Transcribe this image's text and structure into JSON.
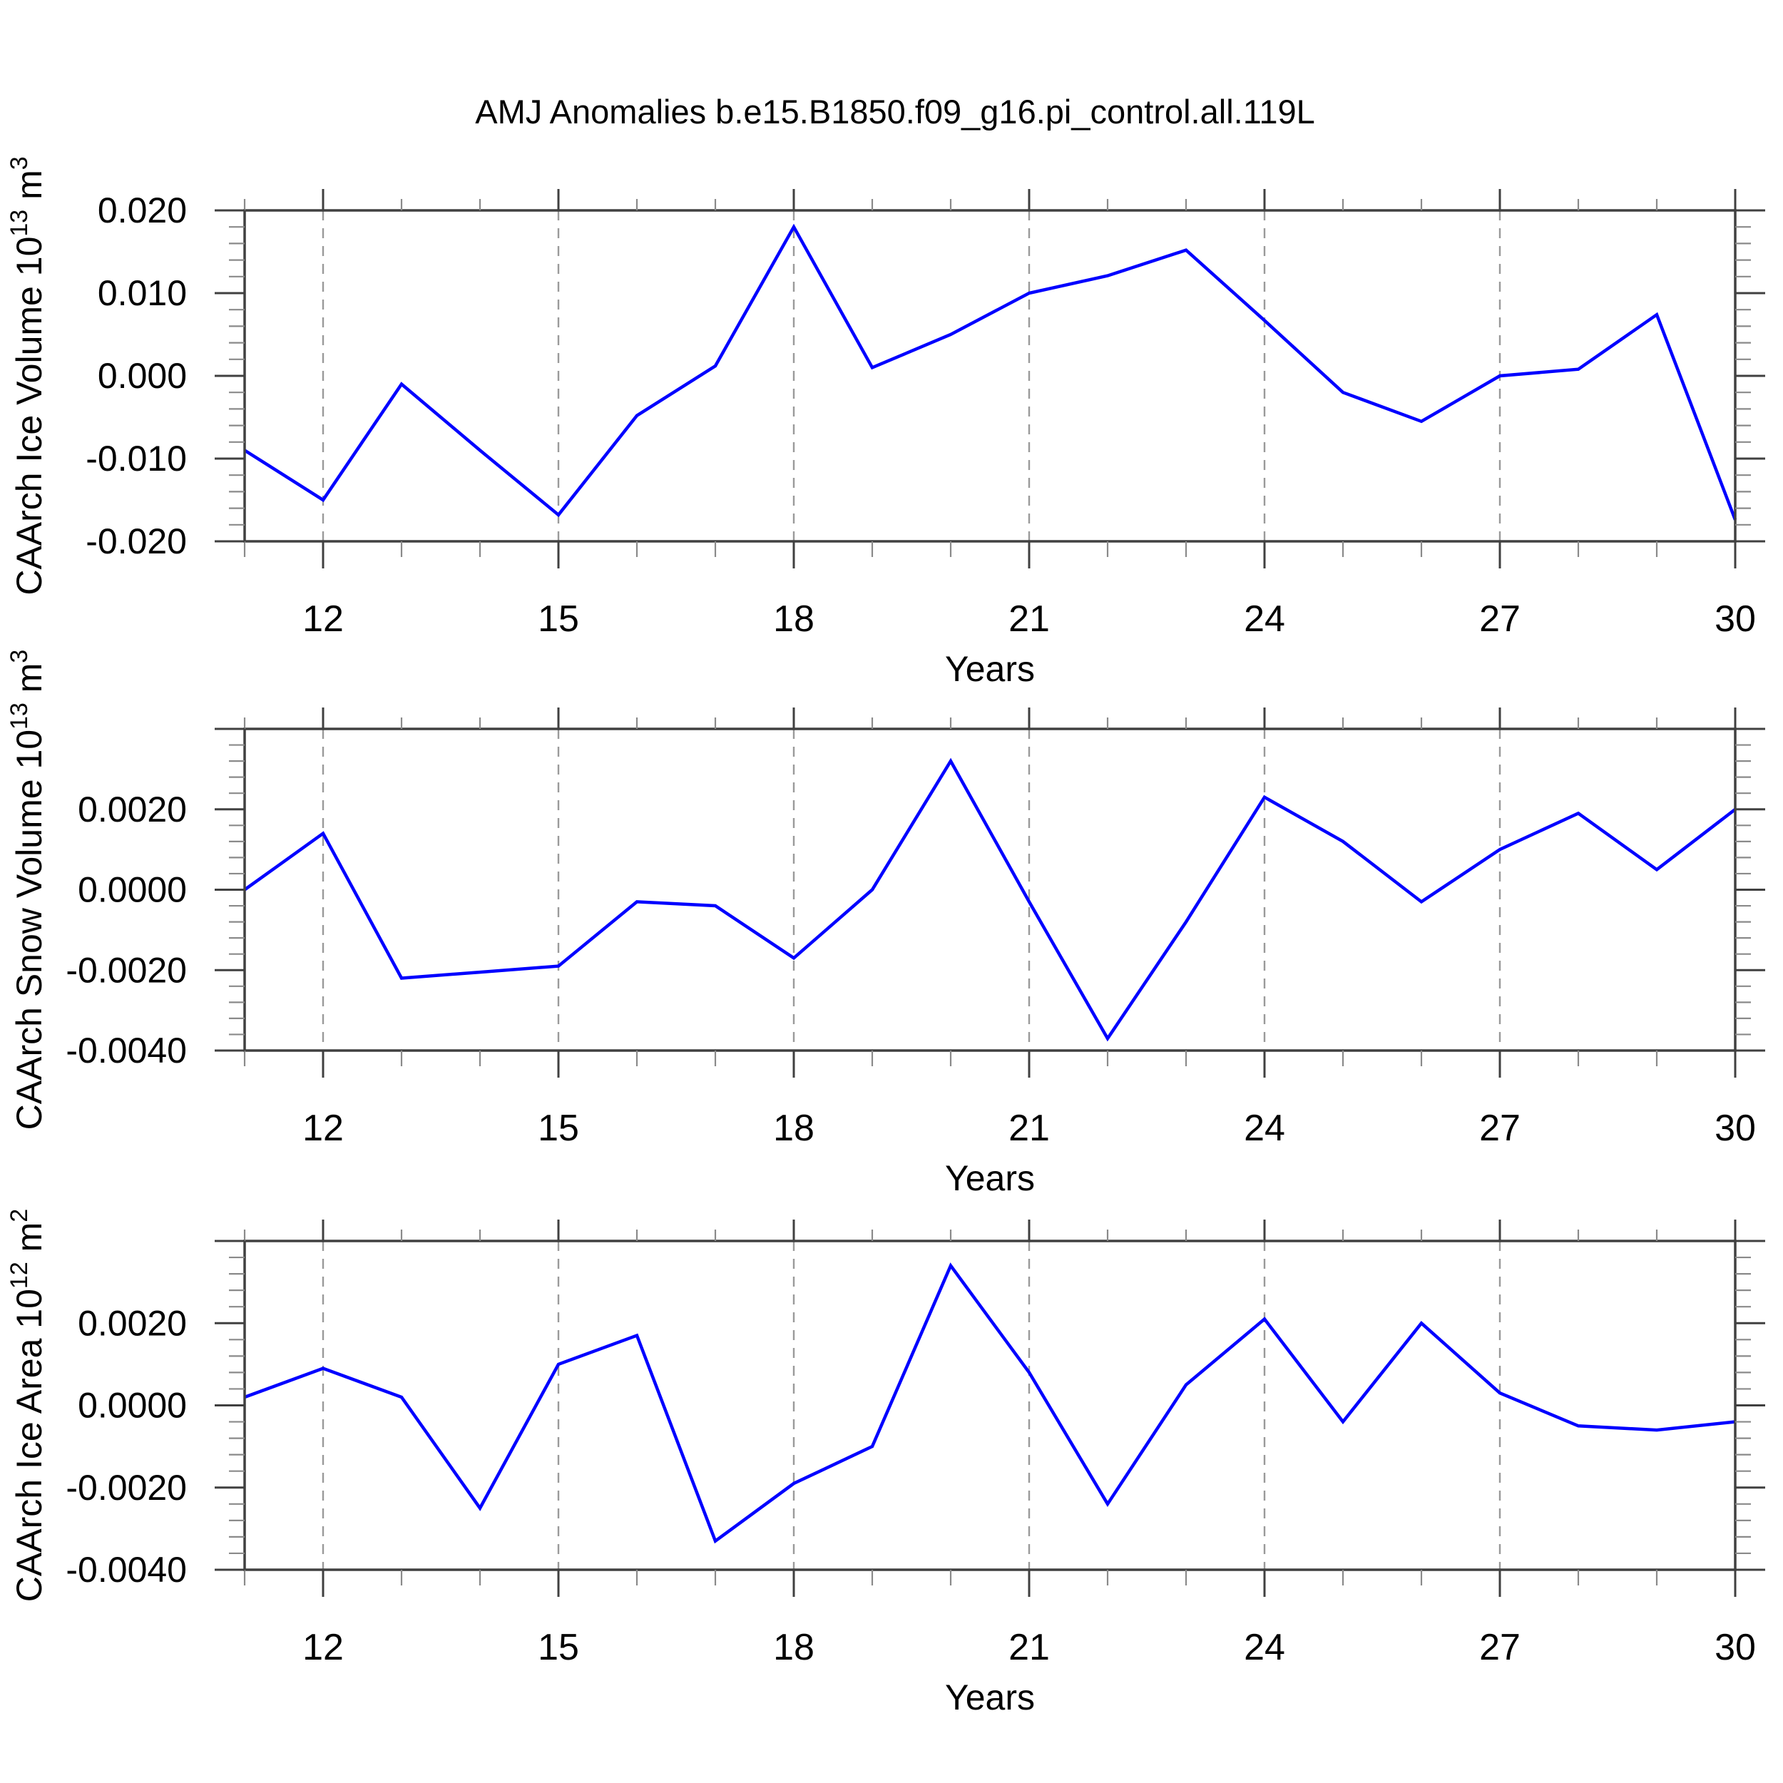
{
  "title": "AMJ Anomalies b.e15.B1850.f09_g16.pi_control.all.119L",
  "colors": {
    "line": "#0000ff",
    "axis": "#404040",
    "minor_tick": "#8a8a8a",
    "grid": "#9a9a9a",
    "text": "#000000"
  },
  "chart_data": [
    {
      "type": "line",
      "name": "ice-volume",
      "title": "",
      "ylabel": "CAArch Ice Volume 10^13 m^3",
      "ylabel_parts": [
        {
          "t": "CAArch Ice Volume 10"
        },
        {
          "t": "13",
          "sup": true
        },
        {
          "t": " m"
        },
        {
          "t": "3",
          "sup": true
        }
      ],
      "xlabel": "Years",
      "x": [
        11,
        12,
        13,
        14,
        15,
        16,
        17,
        18,
        19,
        20,
        21,
        22,
        23,
        24,
        25,
        26,
        27,
        28,
        29,
        30
      ],
      "values": [
        -0.009,
        -0.015,
        -0.001,
        -0.009,
        -0.0168,
        -0.0048,
        0.0012,
        0.018,
        0.001,
        0.005,
        0.01,
        0.0121,
        0.0152,
        0.0067,
        -0.002,
        -0.0055,
        0.0,
        0.0008,
        0.0074,
        -0.0174
      ],
      "xlim": [
        11,
        30
      ],
      "ylim": [
        -0.02,
        0.02
      ],
      "xticks_major": [
        12,
        15,
        18,
        21,
        24,
        27,
        30
      ],
      "xtick_labels": [
        "12",
        "15",
        "18",
        "21",
        "24",
        "27",
        "30"
      ],
      "grid_x": [
        12,
        15,
        18,
        21,
        24,
        27
      ],
      "yticks": [
        {
          "v": -0.02,
          "label": "-0.020"
        },
        {
          "v": -0.01,
          "label": "-0.010"
        },
        {
          "v": 0.0,
          "label": "0.000"
        },
        {
          "v": 0.01,
          "label": "0.010"
        },
        {
          "v": 0.02,
          "label": "0.020"
        }
      ],
      "yminor_step": 0.002,
      "legend": "none",
      "grid": "vertical-dashed"
    },
    {
      "type": "line",
      "name": "snow-volume",
      "title": "",
      "ylabel": "CAArch Snow Volume 10^13 m^3",
      "ylabel_parts": [
        {
          "t": "CAArch Snow Volume 10"
        },
        {
          "t": "13",
          "sup": true
        },
        {
          "t": " m"
        },
        {
          "t": "3",
          "sup": true
        }
      ],
      "xlabel": "Years",
      "x": [
        11,
        12,
        13,
        14,
        15,
        16,
        17,
        18,
        19,
        20,
        21,
        22,
        23,
        24,
        25,
        26,
        27,
        28,
        29,
        30
      ],
      "values": [
        0.0,
        0.0014,
        -0.0022,
        -0.00205,
        -0.0019,
        -0.0003,
        -0.0004,
        -0.0017,
        0.0,
        0.0032,
        -0.0003,
        -0.0037,
        -0.0008,
        0.0023,
        0.0012,
        -0.0003,
        0.001,
        0.0019,
        0.0005,
        0.002
      ],
      "xlim": [
        11,
        30
      ],
      "ylim": [
        -0.004,
        0.004
      ],
      "xticks_major": [
        12,
        15,
        18,
        21,
        24,
        27,
        30
      ],
      "xtick_labels": [
        "12",
        "15",
        "18",
        "21",
        "24",
        "27",
        "30"
      ],
      "grid_x": [
        12,
        15,
        18,
        21,
        24,
        27
      ],
      "yticks": [
        {
          "v": -0.004,
          "label": "-0.0040"
        },
        {
          "v": -0.002,
          "label": "-0.0020"
        },
        {
          "v": 0.0,
          "label": "0.0000"
        },
        {
          "v": 0.002,
          "label": "0.0020"
        },
        {
          "v": 0.004,
          "label": ""
        }
      ],
      "yminor_step": 0.0004,
      "legend": "none",
      "grid": "vertical-dashed"
    },
    {
      "type": "line",
      "name": "ice-area",
      "title": "",
      "ylabel": "CAArch Ice Area 10^12 m^2",
      "ylabel_parts": [
        {
          "t": "CAArch Ice Area 10"
        },
        {
          "t": "12",
          "sup": true
        },
        {
          "t": " m"
        },
        {
          "t": "2",
          "sup": true
        }
      ],
      "xlabel": "Years",
      "x": [
        11,
        12,
        13,
        14,
        15,
        16,
        17,
        18,
        19,
        20,
        21,
        22,
        23,
        24,
        25,
        26,
        27,
        28,
        29,
        30
      ],
      "values": [
        0.0002,
        0.0009,
        0.0002,
        -0.0025,
        0.001,
        0.0017,
        -0.0033,
        -0.0019,
        -0.001,
        0.0034,
        0.0008,
        -0.0024,
        0.0005,
        0.0021,
        -0.0004,
        0.002,
        0.0003,
        -0.0005,
        -0.0006,
        -0.0004
      ],
      "xlim": [
        11,
        30
      ],
      "ylim": [
        -0.004,
        0.004
      ],
      "xticks_major": [
        12,
        15,
        18,
        21,
        24,
        27,
        30
      ],
      "xtick_labels": [
        "12",
        "15",
        "18",
        "21",
        "24",
        "27",
        "30"
      ],
      "grid_x": [
        12,
        15,
        18,
        21,
        24,
        27
      ],
      "yticks": [
        {
          "v": -0.004,
          "label": "-0.0040"
        },
        {
          "v": -0.002,
          "label": "-0.0020"
        },
        {
          "v": 0.0,
          "label": "0.0000"
        },
        {
          "v": 0.002,
          "label": "0.0020"
        },
        {
          "v": 0.004,
          "label": ""
        }
      ],
      "yminor_step": 0.0004,
      "legend": "none",
      "grid": "vertical-dashed"
    }
  ]
}
